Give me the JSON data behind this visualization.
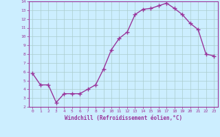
{
  "x": [
    0,
    1,
    2,
    3,
    4,
    5,
    6,
    7,
    8,
    9,
    10,
    11,
    12,
    13,
    14,
    15,
    16,
    17,
    18,
    19,
    20,
    21,
    22,
    23
  ],
  "y": [
    5.8,
    4.5,
    4.5,
    2.5,
    3.5,
    3.5,
    3.5,
    4.0,
    4.5,
    6.3,
    8.5,
    9.8,
    10.5,
    12.5,
    13.1,
    13.2,
    13.5,
    13.8,
    13.2,
    12.5,
    11.5,
    10.8,
    8.0,
    7.8
  ],
  "line_color": "#993399",
  "marker": "+",
  "bg_color": "#cceeff",
  "grid_color": "#aacccc",
  "xlabel": "Windchill (Refroidissement éolien,°C)",
  "xlabel_color": "#993399",
  "tick_color": "#993399",
  "ylim": [
    2,
    14
  ],
  "xlim": [
    -0.5,
    23.5
  ],
  "yticks": [
    2,
    3,
    4,
    5,
    6,
    7,
    8,
    9,
    10,
    11,
    12,
    13,
    14
  ],
  "xticks": [
    0,
    1,
    2,
    3,
    4,
    5,
    6,
    7,
    8,
    9,
    10,
    11,
    12,
    13,
    14,
    15,
    16,
    17,
    18,
    19,
    20,
    21,
    22,
    23
  ]
}
